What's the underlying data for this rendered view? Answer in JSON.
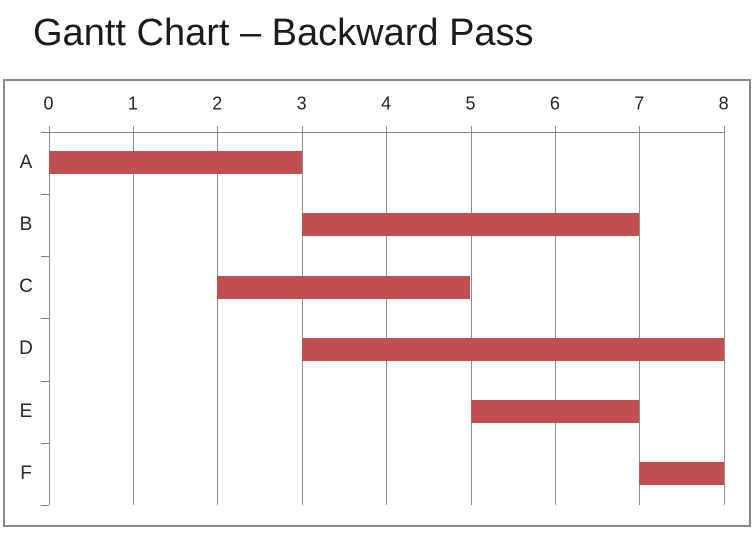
{
  "title": "Gantt Chart – Backward Pass",
  "colors": {
    "bar": "#c0504d",
    "gridline": "#8f8f8f",
    "axis": "#7f7f7f",
    "frame_border": "#8a8a8a",
    "title_text": "#1b1b1b",
    "label_text": "#262626"
  },
  "chart_data": {
    "type": "bar",
    "subtype": "gantt",
    "title": "Gantt Chart – Backward Pass",
    "orientation": "horizontal",
    "x_axis_position": "top",
    "xlim": [
      0,
      8
    ],
    "x_ticks": [
      "0",
      "1",
      "2",
      "3",
      "4",
      "5",
      "6",
      "7",
      "8"
    ],
    "categories": [
      "A",
      "B",
      "C",
      "D",
      "E",
      "F"
    ],
    "bars": [
      {
        "task": "A",
        "start": 0,
        "end": 3
      },
      {
        "task": "B",
        "start": 3,
        "end": 7
      },
      {
        "task": "C",
        "start": 2,
        "end": 5
      },
      {
        "task": "D",
        "start": 3,
        "end": 8
      },
      {
        "task": "E",
        "start": 5,
        "end": 7
      },
      {
        "task": "F",
        "start": 7,
        "end": 8
      }
    ],
    "grid": true,
    "legend": false,
    "xlabel": "",
    "ylabel": ""
  }
}
